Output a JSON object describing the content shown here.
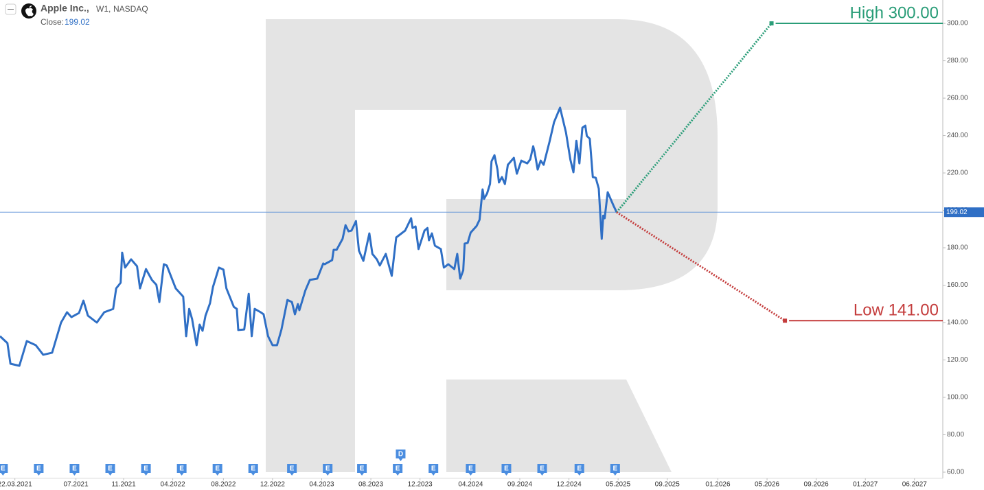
{
  "chart_data": {
    "type": "line",
    "name": "Apple Inc.,",
    "interval": "W1,",
    "exchange": "NASDAQ",
    "close_label": "Close:",
    "close": 199.02,
    "color": "#2f6fc5",
    "xlim": [
      2021.09,
      2027.42
    ],
    "ylim": [
      56.7,
      312.5
    ],
    "xticks": [
      {
        "value": 2021.19,
        "label": "22.03.2021"
      },
      {
        "value": 2021.6,
        "label": "07.2021"
      },
      {
        "value": 2021.92,
        "label": "11.2021"
      },
      {
        "value": 2022.25,
        "label": "04.2022"
      },
      {
        "value": 2022.59,
        "label": "08.2022"
      },
      {
        "value": 2022.92,
        "label": "12.2022"
      },
      {
        "value": 2023.25,
        "label": "04.2023"
      },
      {
        "value": 2023.58,
        "label": "08.2023"
      },
      {
        "value": 2023.91,
        "label": "12.2023"
      },
      {
        "value": 2024.25,
        "label": "04.2024"
      },
      {
        "value": 2024.58,
        "label": "09.2024"
      },
      {
        "value": 2024.91,
        "label": "12.2024"
      },
      {
        "value": 2025.24,
        "label": "05.2025"
      },
      {
        "value": 2025.57,
        "label": "09.2025"
      },
      {
        "value": 2025.91,
        "label": "01.2026"
      },
      {
        "value": 2026.24,
        "label": "05.2026"
      },
      {
        "value": 2026.57,
        "label": "09.2026"
      },
      {
        "value": 2026.9,
        "label": "01.2027"
      },
      {
        "value": 2027.23,
        "label": "06.2027"
      }
    ],
    "yticks": [
      {
        "value": 60,
        "label": "60.00"
      },
      {
        "value": 80,
        "label": "80.00"
      },
      {
        "value": 100,
        "label": "100.00"
      },
      {
        "value": 120,
        "label": "120.00"
      },
      {
        "value": 140,
        "label": "140.00"
      },
      {
        "value": 160,
        "label": "160.00"
      },
      {
        "value": 180,
        "label": "180.00"
      },
      {
        "value": 200,
        "label": "200.00"
      },
      {
        "value": 220,
        "label": "220.00"
      },
      {
        "value": 240,
        "label": "240.00"
      },
      {
        "value": 260,
        "label": "260.00"
      },
      {
        "value": 280,
        "label": "280.00"
      },
      {
        "value": 300,
        "label": "300.00"
      }
    ],
    "x": [
      2021.09,
      2021.14,
      2021.16,
      2021.22,
      2021.27,
      2021.33,
      2021.38,
      2021.44,
      2021.5,
      2021.54,
      2021.57,
      2021.62,
      2021.65,
      2021.68,
      2021.74,
      2021.79,
      2021.85,
      2021.87,
      2021.9,
      2021.91,
      2021.93,
      2021.97,
      2022.01,
      2022.03,
      2022.07,
      2022.11,
      2022.14,
      2022.16,
      2022.19,
      2022.21,
      2022.27,
      2022.32,
      2022.34,
      2022.36,
      2022.38,
      2022.41,
      2022.43,
      2022.45,
      2022.47,
      2022.5,
      2022.52,
      2022.56,
      2022.59,
      2022.61,
      2022.66,
      2022.68,
      2022.69,
      2022.73,
      2022.76,
      2022.78,
      2022.8,
      2022.84,
      2022.86,
      2022.89,
      2022.92,
      2022.95,
      2022.98,
      2023.02,
      2023.05,
      2023.07,
      2023.09,
      2023.1,
      2023.14,
      2023.17,
      2023.22,
      2023.26,
      2023.27,
      2023.32,
      2023.33,
      2023.35,
      2023.39,
      2023.41,
      2023.43,
      2023.45,
      2023.48,
      2023.5,
      2023.53,
      2023.57,
      2023.59,
      2023.62,
      2023.64,
      2023.68,
      2023.72,
      2023.75,
      2023.81,
      2023.85,
      2023.86,
      2023.88,
      2023.9,
      2023.94,
      2023.96,
      2023.97,
      2023.99,
      2024.01,
      2024.05,
      2024.07,
      2024.1,
      2024.14,
      2024.16,
      2024.18,
      2024.2,
      2024.21,
      2024.23,
      2024.25,
      2024.29,
      2024.31,
      2024.33,
      2024.34,
      2024.36,
      2024.38,
      2024.39,
      2024.41,
      2024.43,
      2024.44,
      2024.46,
      2024.48,
      2024.5,
      2024.54,
      2024.56,
      2024.59,
      2024.63,
      2024.65,
      2024.67,
      2024.68,
      2024.7,
      2024.72,
      2024.74,
      2024.78,
      2024.81,
      2024.85,
      2024.89,
      2024.92,
      2024.94,
      2024.96,
      2024.98,
      2025.0,
      2025.02,
      2025.03,
      2025.05,
      2025.07,
      2025.09,
      2025.11,
      2025.13,
      2025.14,
      2025.15,
      2025.17,
      2025.21,
      2025.23
    ],
    "values": [
      132.7,
      129.0,
      118.0,
      116.9,
      130.1,
      127.9,
      122.8,
      123.9,
      140.0,
      145.5,
      142.9,
      145.1,
      151.7,
      143.7,
      140.0,
      145.5,
      147.3,
      158.3,
      161.3,
      177.4,
      169.4,
      173.8,
      170.1,
      158.3,
      168.6,
      162.8,
      160.2,
      151.0,
      171.2,
      170.5,
      158.3,
      153.9,
      132.7,
      147.3,
      141.8,
      127.9,
      138.9,
      135.6,
      143.7,
      150.3,
      159.1,
      169.4,
      168.3,
      158.3,
      148.4,
      147.3,
      136.0,
      136.3,
      155.4,
      132.7,
      147.3,
      145.5,
      144.4,
      132.7,
      127.9,
      127.9,
      136.3,
      152.1,
      151.0,
      144.4,
      149.9,
      146.6,
      157.2,
      162.8,
      163.5,
      171.6,
      171.2,
      173.4,
      178.9,
      178.9,
      184.8,
      192.1,
      188.8,
      189.2,
      194.3,
      178.5,
      173.0,
      187.7,
      176.7,
      173.8,
      170.5,
      176.7,
      165.0,
      185.5,
      189.2,
      195.8,
      190.6,
      191.4,
      179.3,
      189.2,
      190.6,
      184.0,
      187.7,
      181.1,
      179.3,
      169.4,
      171.2,
      168.6,
      176.7,
      163.5,
      167.9,
      182.2,
      182.6,
      188.1,
      191.7,
      195.0,
      211.2,
      206.1,
      209.0,
      214.1,
      226.2,
      229.5,
      221.8,
      214.9,
      217.8,
      214.1,
      224.4,
      228.1,
      219.6,
      226.6,
      225.1,
      227.3,
      234.3,
      231.0,
      221.8,
      226.6,
      224.4,
      236.9,
      247.2,
      254.9,
      241.7,
      227.0,
      220.4,
      237.2,
      225.1,
      244.2,
      245.3,
      239.8,
      238.3,
      217.8,
      217.4,
      211.6,
      184.8,
      197.2,
      195.8,
      209.7,
      202.4,
      199.02
    ],
    "targets": [
      {
        "label": "High 300.00",
        "value": 300,
        "x": 2026.27,
        "color": "#2a9d78"
      },
      {
        "label": "Low 141.00",
        "value": 141,
        "x": 2026.36,
        "color": "#c43c3c"
      }
    ],
    "events": [
      {
        "x": 2021.11,
        "label": "E"
      },
      {
        "x": 2021.35,
        "label": "E"
      },
      {
        "x": 2021.59,
        "label": "E"
      },
      {
        "x": 2021.83,
        "label": "E"
      },
      {
        "x": 2022.07,
        "label": "E"
      },
      {
        "x": 2022.31,
        "label": "E"
      },
      {
        "x": 2022.55,
        "label": "E"
      },
      {
        "x": 2022.79,
        "label": "E"
      },
      {
        "x": 2023.05,
        "label": "E"
      },
      {
        "x": 2023.29,
        "label": "E"
      },
      {
        "x": 2023.52,
        "label": "E"
      },
      {
        "x": 2023.76,
        "label": "E"
      },
      {
        "x": 2023.78,
        "label": "D"
      },
      {
        "x": 2024.0,
        "label": "E"
      },
      {
        "x": 2024.25,
        "label": "E"
      },
      {
        "x": 2024.49,
        "label": "E"
      },
      {
        "x": 2024.73,
        "label": "E"
      },
      {
        "x": 2024.98,
        "label": "E"
      },
      {
        "x": 2025.22,
        "label": "E"
      }
    ]
  }
}
